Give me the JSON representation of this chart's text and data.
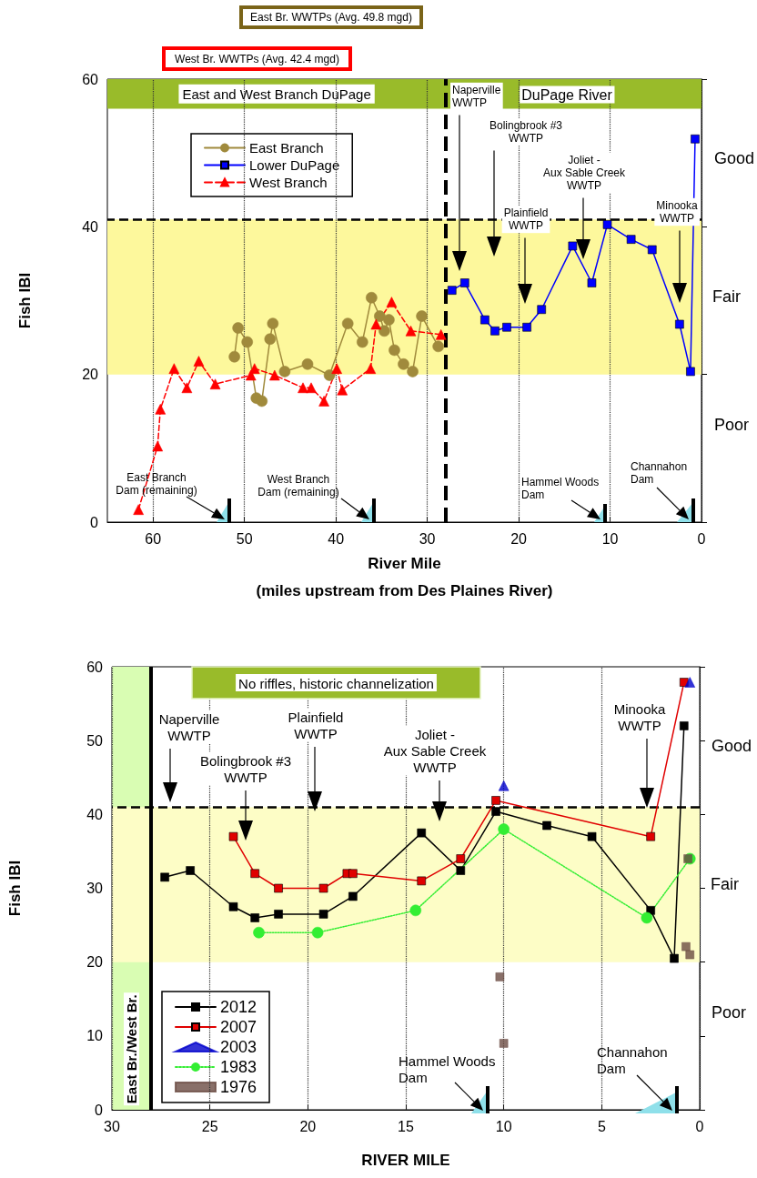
{
  "chart_data": [
    {
      "type": "line",
      "xlabel": "River Mile\n(miles upstream from Des Plaines River)",
      "ylabel": "Fish IBI",
      "xlim": [
        65,
        0
      ],
      "xticks": [
        60,
        50,
        40,
        30,
        20,
        10,
        0
      ],
      "ylim": [
        0,
        60
      ],
      "yticks": [
        0,
        20,
        40,
        60
      ],
      "grid": "x",
      "legend": "top left",
      "series": [
        {
          "name": "East Branch",
          "color": "#a08a3c",
          "marker": "circle",
          "line_style": "solid",
          "x": [
            51.1,
            50.7,
            49.7,
            48.7,
            48.1,
            47.2,
            46.9,
            45.6,
            43.1,
            40.7,
            38.7,
            37.1,
            36.1,
            35.2,
            34.7,
            34.2,
            33.6,
            32.6,
            31.6,
            30.6,
            28.8
          ],
          "values": [
            22.4,
            26.3,
            24.4,
            16.8,
            16.4,
            24.8,
            26.9,
            20.4,
            21.4,
            19.9,
            26.9,
            24.4,
            30.4,
            27.9,
            25.9,
            27.4,
            23.3,
            21.4,
            20.4,
            27.9,
            23.8
          ]
        },
        {
          "name": "Lower DuPage",
          "color": "#0000ff",
          "marker": "square",
          "line_style": "solid",
          "x": [
            27.3,
            25.9,
            23.7,
            22.6,
            21.3,
            19.1,
            17.5,
            14.1,
            12.0,
            10.3,
            7.7,
            5.4,
            2.4,
            1.2,
            0.7
          ],
          "values": [
            31.4,
            32.4,
            27.4,
            25.9,
            26.4,
            26.4,
            28.8,
            37.4,
            32.4,
            40.3,
            38.3,
            36.9,
            26.8,
            20.4,
            51.9
          ]
        },
        {
          "name": "West Branch",
          "color": "#ff0000",
          "marker": "triangle",
          "line_style": "dashed",
          "x": [
            61.6,
            59.5,
            59.2,
            57.7,
            56.3,
            55.0,
            53.2,
            49.3,
            48.9,
            46.7,
            43.6,
            42.7,
            41.3,
            39.9,
            39.3,
            36.2,
            35.6,
            33.9,
            31.8,
            28.5
          ],
          "values": [
            1.7,
            10.3,
            15.3,
            20.8,
            18.2,
            21.8,
            18.7,
            19.9,
            20.8,
            19.9,
            18.2,
            18.2,
            16.4,
            20.8,
            17.9,
            20.8,
            26.8,
            29.8,
            25.9,
            25.4
          ]
        }
      ],
      "bands": [
        {
          "axis": "y",
          "from": 56,
          "to": 60,
          "label": "East and West Branch DuPage",
          "color": "#99bb2a"
        },
        {
          "axis": "y",
          "from": 20,
          "to": 41,
          "label": "Fair",
          "color": "#fdf89c"
        }
      ],
      "ref_lines": [
        {
          "axis": "y",
          "value": 41,
          "color": "#000000",
          "line_style": "dashed"
        },
        {
          "axis": "x",
          "value": 28,
          "color": "#000000",
          "line_style": "dashed"
        }
      ],
      "annotations": [
        "East Br. WWTPs (Avg. 49.8 mgd)",
        "West Br. WWTPs (Avg. 42.4 mgd)",
        "DuPage River",
        "Naperville\nWWTP",
        "Bolingbrook #3\nWWTP",
        "Plainfield\nWWTP",
        "Joliet -\nAux Sable Creek\nWWTP",
        "Minooka\nWWTP",
        "East Branch\nDam (remaining)",
        "West Branch\nDam (remaining)",
        "Hammel Woods\nDam",
        "Channahon\nDam",
        "Good",
        "Poor"
      ]
    },
    {
      "type": "line",
      "xlabel": "RIVER MILE",
      "ylabel": "Fish IBI",
      "xlim": [
        30,
        0
      ],
      "xticks": [
        30,
        25,
        20,
        15,
        10,
        5,
        0
      ],
      "ylim": [
        0,
        60
      ],
      "yticks": [
        0,
        10,
        20,
        30,
        40,
        50,
        60
      ],
      "grid": "x",
      "legend": "bottom left",
      "series": [
        {
          "name": "2012",
          "color": "#000000",
          "marker": "square",
          "line_style": "solid",
          "x": [
            27.3,
            26.0,
            23.8,
            22.7,
            21.5,
            19.2,
            17.7,
            14.2,
            12.2,
            10.4,
            7.8,
            5.5,
            2.5,
            1.3,
            0.8
          ],
          "values": [
            31.5,
            32.4,
            27.5,
            26.0,
            26.5,
            26.5,
            28.9,
            37.5,
            32.4,
            40.4,
            38.5,
            37.0,
            27.0,
            20.5,
            52.0
          ]
        },
        {
          "name": "2007",
          "color": "#e00000",
          "marker": "square",
          "line_style": "solid",
          "x": [
            23.8,
            22.7,
            21.5,
            19.2,
            18.0,
            17.7,
            14.2,
            12.2,
            10.4,
            2.5,
            0.8
          ],
          "values": [
            37.0,
            32.0,
            30.0,
            30.0,
            32.0,
            32.0,
            31.0,
            34.0,
            41.9,
            37.0,
            57.9
          ]
        },
        {
          "name": "2003",
          "type": "scatter",
          "color": "#0000cc",
          "marker": "triangle",
          "x": [
            10.0,
            0.5
          ],
          "values": [
            43.9,
            57.9
          ]
        },
        {
          "name": "1983",
          "color": "#33ee33",
          "marker": "circle",
          "line_style": "dotted",
          "x": [
            22.5,
            19.5,
            14.5,
            10.0,
            2.7,
            0.5
          ],
          "values": [
            24.0,
            24.0,
            27.0,
            38.0,
            26.0,
            34.0
          ]
        },
        {
          "name": "1976",
          "type": "scatter",
          "color": "#6b4c43",
          "marker": "square",
          "x": [
            10.2,
            10.0,
            0.6,
            0.7,
            0.5
          ],
          "values": [
            18.0,
            9.0,
            34.0,
            22.1,
            21.0
          ]
        }
      ],
      "bands": [
        {
          "axis": "x",
          "from": 30,
          "to": 28,
          "label": "East Br./West Br.",
          "color": "#d9fdb3"
        },
        {
          "axis": "y",
          "from": 20,
          "to": 41,
          "label": "Fair",
          "color": "#fdfdc6"
        }
      ],
      "ref_lines": [
        {
          "axis": "y",
          "value": 41,
          "color": "#000000",
          "line_style": "dashed"
        },
        {
          "axis": "x",
          "value": 28,
          "color": "#000000",
          "line_style": "solid"
        }
      ],
      "annotations": [
        "No riffles, historic channelization",
        "Naperville\nWWTP",
        "Bolingbrook #3\nWWTP",
        "Plainfield\nWWTP",
        "Joliet -\nAux Sable Creek\nWWTP",
        "Minooka\nWWTP",
        "Hammel Woods\nDam",
        "Channahon\nDam",
        "Good",
        "Poor"
      ]
    }
  ]
}
